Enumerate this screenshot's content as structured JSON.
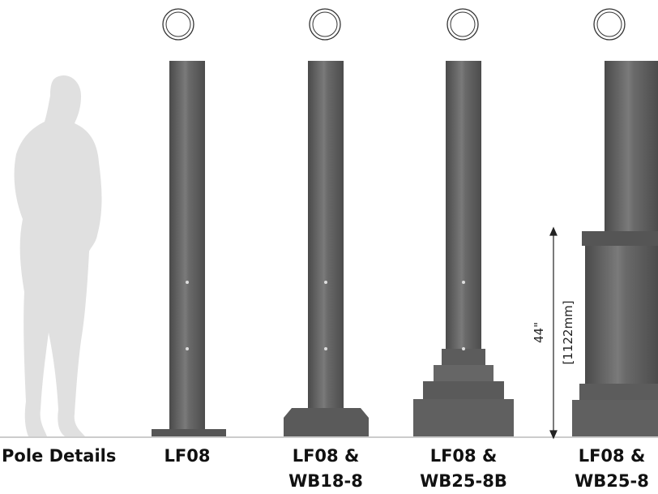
{
  "row_title": "Pole Details",
  "poles": [
    {
      "lines": [
        "LF08"
      ]
    },
    {
      "lines": [
        "LF08 &",
        "WB18-8"
      ]
    },
    {
      "lines": [
        "LF08 &",
        "WB25-8B"
      ]
    },
    {
      "lines": [
        "LF08 &",
        "WB25-8"
      ]
    }
  ],
  "dimension": {
    "imperial": "44\"",
    "metric": "[1122mm]"
  }
}
